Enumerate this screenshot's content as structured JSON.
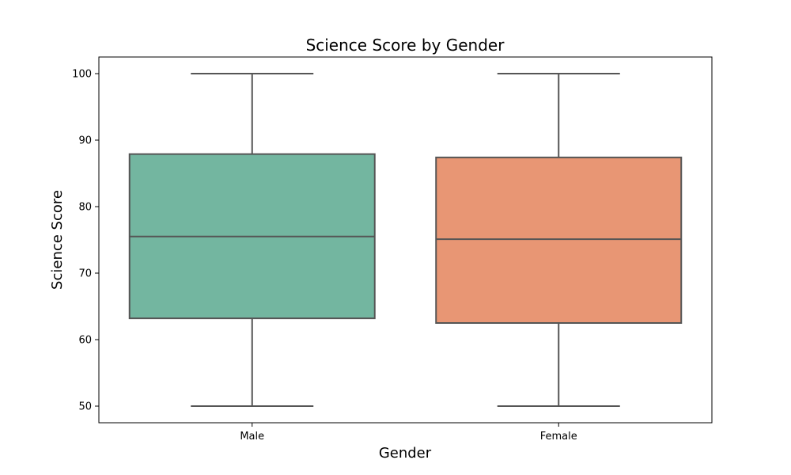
{
  "chart_data": {
    "type": "box",
    "title": "Science Score by Gender",
    "xlabel": "Gender",
    "ylabel": "Science Score",
    "ylim": [
      47.5,
      102.5
    ],
    "yticks": [
      50,
      60,
      70,
      80,
      90,
      100
    ],
    "grid": false,
    "categories": [
      "Male",
      "Female"
    ],
    "boxes": [
      {
        "category": "Male",
        "min": 50,
        "q1": 63.2,
        "median": 75.5,
        "q3": 87.9,
        "max": 100,
        "color": "#73b6a0"
      },
      {
        "category": "Female",
        "min": 50,
        "q1": 62.5,
        "median": 75.1,
        "q3": 87.4,
        "max": 100,
        "color": "#e89674"
      }
    ],
    "line_color": "#555555"
  }
}
